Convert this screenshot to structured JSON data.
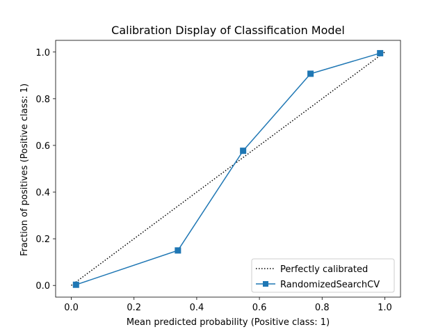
{
  "chart_data": {
    "type": "line",
    "title": "Calibration Display of Classification Model",
    "xlabel": "Mean predicted probability (Positive class: 1)",
    "ylabel": "Fraction of positives (Positive class: 1)",
    "xlim": [
      -0.05,
      1.05
    ],
    "ylim": [
      -0.05,
      1.05
    ],
    "xticks": [
      0.0,
      0.2,
      0.4,
      0.6,
      0.8,
      1.0
    ],
    "yticks": [
      0.0,
      0.2,
      0.4,
      0.6,
      0.8,
      1.0
    ],
    "xtick_labels": [
      "0.0",
      "0.2",
      "0.4",
      "0.6",
      "0.8",
      "1.0"
    ],
    "ytick_labels": [
      "0.0",
      "0.2",
      "0.4",
      "0.6",
      "0.8",
      "1.0"
    ],
    "grid": false,
    "legend_position": "bottom-right",
    "series": [
      {
        "name": "Perfectly calibrated",
        "style": "dotted",
        "color": "#000000",
        "marker": "none",
        "x": [
          0.0,
          1.0
        ],
        "y": [
          0.0,
          1.0
        ]
      },
      {
        "name": "RandomizedSearchCV",
        "style": "solid",
        "color": "#1f77b4",
        "marker": "square",
        "x": [
          0.015,
          0.34,
          0.548,
          0.763,
          0.985
        ],
        "y": [
          0.003,
          0.15,
          0.577,
          0.907,
          0.995
        ]
      }
    ]
  }
}
